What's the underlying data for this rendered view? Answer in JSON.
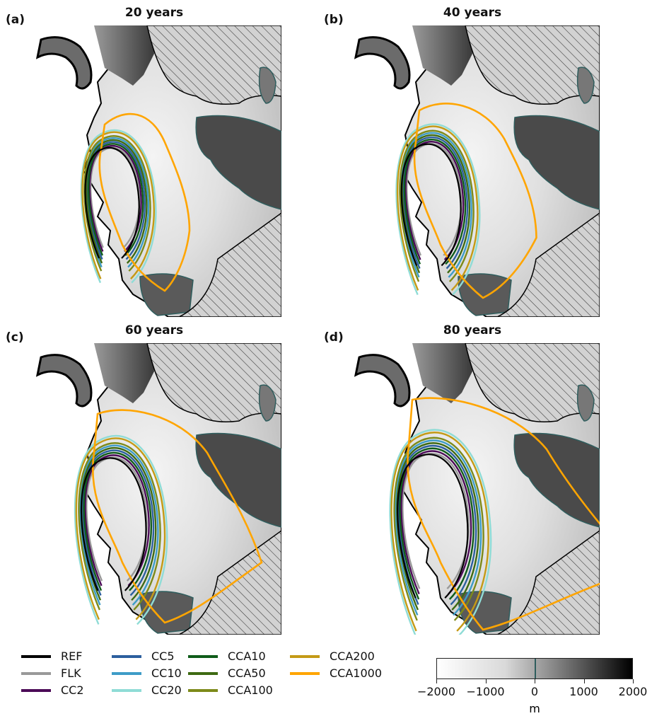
{
  "panels": [
    {
      "letter": "(a)",
      "title": "20 years"
    },
    {
      "letter": "(b)",
      "title": "40 years"
    },
    {
      "letter": "(c)",
      "title": "60 years"
    },
    {
      "letter": "(d)",
      "title": "80 years"
    }
  ],
  "legend": [
    {
      "label": "REF",
      "color": "#000000"
    },
    {
      "label": "FLK",
      "color": "#999999"
    },
    {
      "label": "CC2",
      "color": "#4b0a57"
    },
    {
      "label": "CC5",
      "color": "#2c5f9e"
    },
    {
      "label": "CC10",
      "color": "#3e9cc7"
    },
    {
      "label": "CC20",
      "color": "#8fdcd6"
    },
    {
      "label": "CCA10",
      "color": "#0f5c1a"
    },
    {
      "label": "CCA50",
      "color": "#3e6a12"
    },
    {
      "label": "CCA100",
      "color": "#7d8a1a"
    },
    {
      "label": "CCA200",
      "color": "#c49a16"
    },
    {
      "label": "CCA1000",
      "color": "#ffa500"
    }
  ],
  "colorbar": {
    "unit": "m",
    "ticks": [
      "−2000",
      "−1000",
      "0",
      "1000",
      "2000"
    ],
    "range": [
      -2000,
      2000
    ]
  },
  "chart_data": {
    "type": "map",
    "panels": [
      "20 years",
      "40 years",
      "60 years",
      "80 years"
    ],
    "series": [
      "REF",
      "FLK",
      "CC2",
      "CC5",
      "CC10",
      "CC20",
      "CCA10",
      "CCA50",
      "CCA100",
      "CCA200",
      "CCA1000"
    ],
    "colorbar_range": [
      -2000,
      2000
    ],
    "colorbar_unit": "m"
  }
}
